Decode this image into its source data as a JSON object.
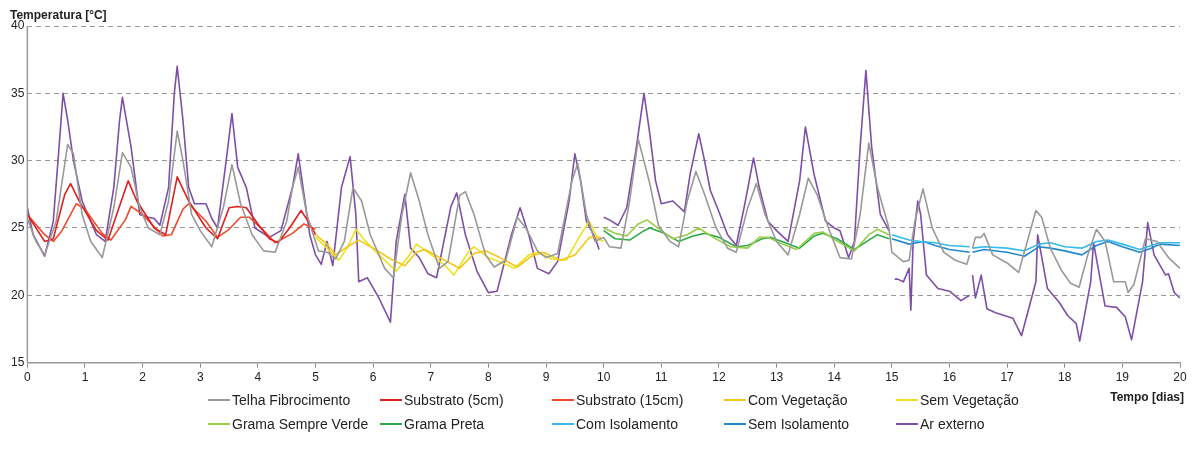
{
  "chart_data": {
    "type": "line",
    "ylabel": "Temperatura [°C]",
    "xlabel": "Tempo [dias]",
    "xlim": [
      0,
      20
    ],
    "xticks": [
      0,
      1,
      2,
      3,
      4,
      5,
      6,
      7,
      8,
      9,
      10,
      11,
      12,
      13,
      14,
      15,
      16,
      17,
      18,
      19,
      20
    ],
    "ylim": [
      15,
      40
    ],
    "yticks": [
      15,
      20,
      25,
      30,
      35,
      40
    ],
    "grid": "y",
    "legend": "bottom",
    "marker": "none",
    "series": [
      {
        "name": "Telha Fibrocimento",
        "color": "#999999",
        "x": [
          0,
          0.15,
          0.3,
          0.5,
          0.7,
          0.8,
          0.95,
          1.1,
          1.3,
          1.5,
          1.65,
          1.8,
          1.95,
          2.1,
          2.3,
          2.45,
          2.6,
          2.7,
          2.85,
          3,
          3.2,
          3.4,
          3.55,
          3.7,
          3.9,
          4.1,
          4.3,
          4.5,
          4.6,
          4.7,
          4.85,
          5.05,
          5.2,
          5.35,
          5.5,
          5.65,
          5.8,
          5.95,
          6.2,
          6.35,
          6.5,
          6.65,
          6.8,
          6.95,
          7.15,
          7.3,
          7.5,
          7.6,
          7.75,
          7.95,
          8.1,
          8.3,
          8.5,
          8.65,
          8.85,
          9,
          9.2,
          9.45,
          9.55,
          9.7,
          9.85,
          10,
          10.1,
          10.3,
          10.45,
          10.6,
          10.8,
          10.95,
          11.15,
          11.3,
          11.45,
          11.6,
          11.75,
          11.95,
          12.15,
          12.3,
          12.5,
          12.65,
          12.8,
          13,
          13.2,
          13.4,
          13.55,
          13.7,
          13.9,
          14.1,
          14.3,
          14.45,
          14.6,
          14.75,
          14.95,
          15,
          15.2,
          15.3,
          15.4,
          15.54,
          15.7,
          15.9,
          16.1,
          16.3,
          16.35,
          16.37,
          16.4,
          16.45,
          16.55,
          16.6,
          16.75,
          17,
          17.2,
          17.35,
          17.5,
          17.6,
          17.75,
          17.95,
          18.1,
          18.25,
          18.4,
          18.55,
          18.7,
          18.85,
          19.05,
          19.1,
          19.2,
          19.4,
          19.6,
          19.8,
          20
        ],
        "values": [
          25.7,
          24,
          23,
          25.5,
          31.2,
          30.5,
          26,
          24,
          22.8,
          26.5,
          30.6,
          29.5,
          26.5,
          25,
          24.5,
          27,
          32.2,
          30,
          26,
          24.8,
          23.6,
          26.5,
          29.7,
          26.8,
          24.5,
          23.3,
          23.2,
          25.5,
          28,
          29.5,
          26,
          23.3,
          23.2,
          22.7,
          24,
          28,
          27,
          24.5,
          22,
          21.3,
          26,
          29.1,
          27,
          24.5,
          22,
          22.5,
          27.4,
          27.7,
          26,
          23,
          22.1,
          22.6,
          25.8,
          25,
          23.3,
          22.8,
          23.1,
          28.5,
          29.8,
          26,
          24,
          24.3,
          23.6,
          23.5,
          27,
          31.6,
          28.3,
          25.2,
          24,
          23.6,
          27,
          29.2,
          27.5,
          25,
          23.5,
          23.2,
          26.5,
          28.3,
          26,
          24,
          23,
          26,
          28.7,
          27.5,
          25,
          22.8,
          22.7,
          26,
          31.3,
          28,
          25,
          23.2,
          22.5,
          22.6,
          25.5,
          27.9,
          25,
          23.2,
          22.6,
          22.3,
          23,
          null,
          23.5,
          24.3,
          24.3,
          24.6,
          23,
          22.4,
          21.7,
          24,
          26.3,
          25.8,
          23.5,
          21.8,
          20.9,
          20.6,
          23,
          24.9,
          24,
          21,
          21,
          20.2,
          20.8,
          24.2,
          24,
          22.8,
          22
        ]
      },
      {
        "name": "Substrato (5cm)",
        "color": "#e02020",
        "x": [
          0,
          0.3,
          0.45,
          0.65,
          0.75,
          0.9,
          1.2,
          1.4,
          1.55,
          1.75,
          1.9,
          2.2,
          2.4,
          2.6,
          2.8,
          3.1,
          3.3,
          3.5,
          3.65,
          3.8,
          4,
          4.2,
          4.35,
          4.55,
          4.75,
          4.9,
          5
        ],
        "values": [
          26,
          24,
          24.2,
          27.5,
          28.3,
          27,
          24.8,
          24.1,
          26,
          28.5,
          27,
          25,
          24.5,
          28.8,
          27,
          25,
          24.2,
          26.5,
          26.6,
          26.5,
          25.3,
          24.2,
          23.9,
          25,
          26.3,
          25.3,
          24.5
        ]
      },
      {
        "name": "Substrato (15cm)",
        "color": "#f04a2a",
        "x": [
          0,
          0.3,
          0.45,
          0.6,
          0.85,
          1,
          1.3,
          1.45,
          1.7,
          1.8,
          2,
          2.35,
          2.5,
          2.7,
          2.8,
          3.1,
          3.3,
          3.5,
          3.7,
          3.85,
          4.1,
          4.3,
          4.6,
          4.8,
          5
        ],
        "values": [
          26,
          24.5,
          24,
          24.8,
          26.8,
          26.4,
          24.6,
          24.1,
          25.6,
          26.6,
          26,
          24.4,
          24.5,
          26.4,
          26.8,
          25.5,
          24.3,
          24.9,
          25.8,
          25.8,
          24.8,
          23.9,
          24.6,
          25.3,
          24.9
        ]
      },
      {
        "name": "Com Vegetação",
        "color": "#f5c518",
        "x": [
          5,
          5.2,
          5.35,
          5.55,
          5.75,
          6,
          6.3,
          6.55,
          6.75,
          6.9,
          7.2,
          7.5,
          7.75,
          7.95,
          8.2,
          8.5,
          8.75,
          8.95,
          9.25,
          9.5,
          9.75,
          9.95
        ],
        "values": [
          24.5,
          23.8,
          23,
          23.6,
          24.1,
          23.5,
          22.7,
          22.2,
          23.2,
          23.4,
          22.7,
          22,
          23.1,
          23.3,
          22.8,
          22.1,
          22.9,
          23.2,
          22.6,
          23,
          24.3,
          24.3
        ]
      },
      {
        "name": "Sem Vegetação",
        "color": "#eee21e",
        "x": [
          5,
          5.2,
          5.4,
          5.55,
          5.7,
          5.85,
          6.1,
          6.4,
          6.6,
          6.75,
          6.95,
          7.25,
          7.4,
          7.65,
          7.75,
          8,
          8.3,
          8.45,
          8.7,
          8.85,
          9.1,
          9.35,
          9.6,
          9.75,
          9.9,
          10
        ],
        "values": [
          24.3,
          23.5,
          22.6,
          23.5,
          24.9,
          24.1,
          23,
          21.8,
          22.8,
          23.8,
          23.2,
          22.2,
          21.5,
          23.2,
          23.6,
          22.8,
          22.3,
          22,
          23,
          23.2,
          22.7,
          22.6,
          24.5,
          25.5,
          24.2,
          24
        ]
      },
      {
        "name": "Grama Sempre Verde",
        "color": "#9acd4a",
        "x": [
          10,
          10.2,
          10.4,
          10.6,
          10.75,
          11,
          11.2,
          11.45,
          11.65,
          11.9,
          12.2,
          12.5,
          12.7,
          12.85,
          13.1,
          13.35,
          13.65,
          13.8,
          14.1,
          14.35,
          14.6,
          14.75,
          14.95
        ],
        "values": [
          25,
          24.6,
          24.4,
          25.3,
          25.6,
          24.8,
          24.2,
          24.5,
          25,
          24.3,
          23.6,
          23.5,
          24.3,
          24.3,
          23.8,
          23.4,
          24.6,
          24.7,
          23.9,
          23.3,
          24.5,
          24.9,
          24.5
        ]
      },
      {
        "name": "Grama Preta",
        "color": "#2eaa4a",
        "x": [
          10,
          10.2,
          10.45,
          10.7,
          10.8,
          11.05,
          11.3,
          11.55,
          11.75,
          12,
          12.3,
          12.5,
          12.75,
          12.9,
          13.15,
          13.4,
          13.65,
          13.8,
          14.05,
          14.35,
          14.6,
          14.75,
          14.95
        ],
        "values": [
          24.8,
          24.2,
          24.1,
          24.8,
          25,
          24.6,
          24,
          24.4,
          24.6,
          24.3,
          23.6,
          23.7,
          24.2,
          24.3,
          23.9,
          23.5,
          24.4,
          24.6,
          24.2,
          23.4,
          24.1,
          24.5,
          24.2
        ]
      },
      {
        "name": "Com Isolamento",
        "color": "#33bbee",
        "x": [
          15,
          15.3,
          15.5,
          15.75,
          16,
          16.35,
          16.37,
          16.4,
          16.6,
          17,
          17.3,
          17.55,
          17.75,
          18,
          18.3,
          18.55,
          18.75,
          19,
          19.3,
          19.5,
          19.65,
          20
        ],
        "values": [
          24.5,
          24.1,
          24,
          23.9,
          23.7,
          23.6,
          null,
          23.5,
          23.6,
          23.5,
          23.3,
          23.8,
          23.9,
          23.6,
          23.5,
          24,
          24.1,
          23.8,
          23.4,
          23.7,
          23.9,
          23.9
        ]
      },
      {
        "name": "Sem Isolamento",
        "color": "#2288cc",
        "x": [
          15,
          15.3,
          15.55,
          15.75,
          16,
          16.35,
          16.37,
          16.4,
          16.6,
          17,
          17.3,
          17.55,
          17.75,
          18,
          18.3,
          18.55,
          18.75,
          19,
          19.3,
          19.5,
          19.65,
          20
        ],
        "values": [
          24.2,
          23.8,
          24,
          23.7,
          23.4,
          23.2,
          null,
          23.2,
          23.4,
          23.2,
          22.9,
          23.6,
          23.5,
          23.3,
          23,
          23.7,
          24,
          23.6,
          23.2,
          23.5,
          23.8,
          23.7
        ]
      },
      {
        "name": "Ar externo",
        "color": "#7e4fa8",
        "x": [
          0,
          0.1,
          0.3,
          0.45,
          0.55,
          0.62,
          0.7,
          0.8,
          0.95,
          1.2,
          1.35,
          1.5,
          1.6,
          1.65,
          1.8,
          1.95,
          2.1,
          2.2,
          2.3,
          2.45,
          2.55,
          2.6,
          2.7,
          2.8,
          2.9,
          3.1,
          3.2,
          3.3,
          3.45,
          3.55,
          3.65,
          3.8,
          3.95,
          4.2,
          4.4,
          4.6,
          4.7,
          4.8,
          4.9,
          5,
          5.1,
          5.2,
          5.3,
          5.45,
          5.6,
          5.7,
          5.75,
          5.9,
          6.1,
          6.3,
          6.4,
          6.55,
          6.65,
          6.8,
          6.95,
          7.1,
          7.35,
          7.45,
          7.6,
          7.8,
          8,
          8.15,
          8.4,
          8.55,
          8.7,
          8.85,
          9.05,
          9.2,
          9.4,
          9.5,
          9.6,
          9.7,
          9.85,
          9.92,
          9.96,
          10,
          10.1,
          10.25,
          10.4,
          10.55,
          10.65,
          10.7,
          10.8,
          10.9,
          11,
          11.2,
          11.4,
          11.5,
          11.65,
          11.75,
          11.85,
          12,
          12.15,
          12.3,
          12.45,
          12.6,
          12.7,
          12.85,
          13,
          13.2,
          13.4,
          13.5,
          13.65,
          13.85,
          14,
          14.1,
          14.25,
          14.35,
          14.45,
          14.55,
          14.65,
          14.8,
          14.95,
          15,
          15.05,
          15.1,
          15.2,
          15.3,
          15.33,
          15.37,
          15.45,
          15.5,
          15.6,
          15.8,
          16,
          16.2,
          16.35,
          16.37,
          16.4,
          16.45,
          16.55,
          16.65,
          16.8,
          17.1,
          17.25,
          17.5,
          17.53,
          17.7,
          17.9,
          18.05,
          18.2,
          18.26,
          18.45,
          18.5,
          18.7,
          18.9,
          19.05,
          19.16,
          19.35,
          19.44,
          19.55,
          19.75,
          19.8,
          19.9,
          20
        ],
        "values": [
          26.5,
          24.5,
          22.9,
          25.5,
          31,
          35,
          33,
          30,
          27,
          24.5,
          24,
          28,
          33,
          34.7,
          31,
          26,
          25.8,
          25.7,
          25.2,
          28,
          35,
          37,
          33,
          28,
          26.8,
          26.8,
          25.7,
          25,
          30,
          33.5,
          29.5,
          28,
          25,
          24.3,
          24.8,
          28,
          30.5,
          27.5,
          24.5,
          23,
          22.3,
          24,
          22.2,
          28,
          30.3,
          26,
          21,
          21.3,
          19.8,
          18,
          24,
          27.5,
          23.5,
          22.8,
          21.6,
          21.3,
          26.6,
          27.6,
          24.5,
          21.8,
          20.2,
          20.3,
          24.5,
          26.5,
          24.5,
          22,
          21.6,
          22.5,
          27,
          30.5,
          28.5,
          25.5,
          24.3,
          23.4,
          null,
          25.8,
          25.6,
          25.2,
          26.5,
          30.5,
          33.5,
          35,
          32,
          28.5,
          26.8,
          27,
          26.2,
          29,
          32,
          30,
          27.8,
          26.2,
          24.5,
          23.7,
          26.8,
          30.2,
          28,
          25.5,
          24.8,
          24,
          28.5,
          32.5,
          29,
          25.5,
          25,
          24.8,
          22.8,
          24,
          31,
          36.7,
          31,
          26,
          24.8,
          null,
          21.2,
          21.2,
          21,
          22,
          18.9,
          24,
          27,
          26,
          21.5,
          20.5,
          20.3,
          19.6,
          20,
          null,
          21.5,
          19.8,
          21.5,
          19,
          18.7,
          18.3,
          17,
          21,
          24.5,
          20.5,
          19.5,
          18.5,
          17.9,
          16.6,
          21,
          23.9,
          19.2,
          19.1,
          18.4,
          16.7,
          21,
          25.4,
          23,
          21.5,
          21.6,
          20.2,
          19.8
        ]
      }
    ]
  }
}
